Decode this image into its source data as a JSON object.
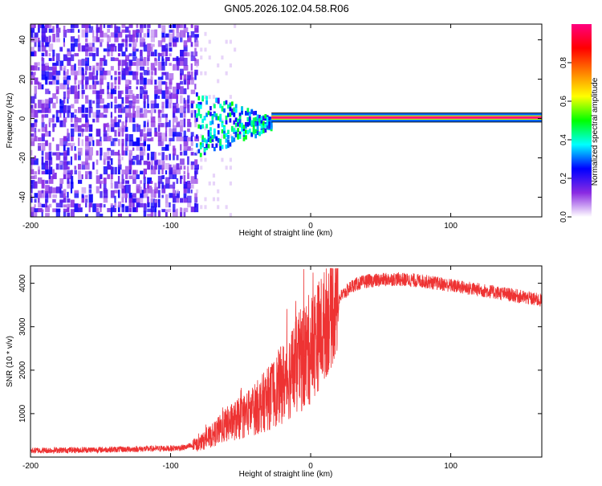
{
  "title": "GN05.2026.102.04.58.R06",
  "chart_data": [
    {
      "type": "heatmap",
      "xlabel": "Height of straight line (km)",
      "ylabel": "Frequency (Hz)",
      "xlim": [
        -200,
        165
      ],
      "ylim": [
        -50,
        48
      ],
      "xticks": [
        -200,
        -100,
        0,
        100
      ],
      "yticks": [
        -40,
        -20,
        0,
        20,
        40
      ],
      "colorbar": {
        "label": "Normalized spectral amplitude",
        "range": [
          0,
          1
        ],
        "ticks": [
          "0.0",
          "0.2",
          "0.4",
          "0.6",
          "0.8"
        ],
        "stops": [
          "#ffffff",
          "#8a2be2",
          "#0000ff",
          "#00ffff",
          "#00ff00",
          "#ffff00",
          "#ff8000",
          "#ff0000",
          "#ff007f"
        ]
      },
      "regions": [
        {
          "name": "noise",
          "x": [
            -200,
            -82
          ],
          "freq": [
            -50,
            48
          ],
          "amplitude": [
            0.05,
            0.25
          ]
        },
        {
          "name": "transition",
          "x": [
            -82,
            -28
          ],
          "freq": [
            -18,
            10
          ],
          "amplitude": [
            0.2,
            0.5
          ]
        },
        {
          "name": "tone",
          "x": [
            -28,
            165
          ],
          "freq": [
            0,
            1
          ],
          "amplitude": [
            0.85,
            1.0
          ]
        }
      ]
    },
    {
      "type": "line",
      "xlabel": "Height of straight line (km)",
      "ylabel": "SNR (10 * v/v)",
      "xlim": [
        -200,
        165
      ],
      "ylim": [
        0,
        4400
      ],
      "xticks": [
        -200,
        -100,
        0,
        100
      ],
      "yticks": [
        1000,
        2000,
        3000,
        4000
      ],
      "color": "#ee3333",
      "envelope": {
        "x": [
          -200,
          -150,
          -100,
          -90,
          -80,
          -70,
          -60,
          -50,
          -40,
          -30,
          -20,
          -10,
          0,
          10,
          20,
          30,
          40,
          60,
          80,
          100,
          120,
          140,
          165
        ],
        "y": [
          150,
          170,
          200,
          220,
          300,
          500,
          750,
          900,
          1100,
          1350,
          1700,
          2100,
          2500,
          3050,
          3650,
          3950,
          4050,
          4100,
          4050,
          3950,
          3850,
          3750,
          3600
        ]
      }
    }
  ]
}
